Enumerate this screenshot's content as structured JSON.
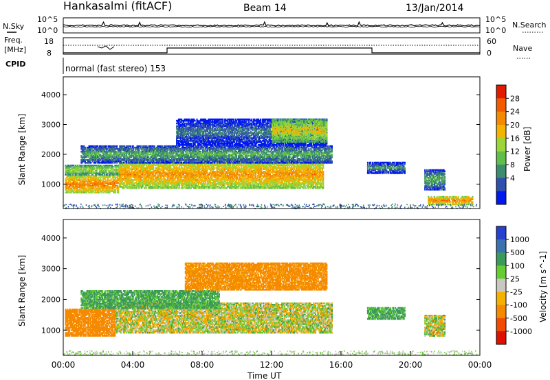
{
  "header": {
    "station": "Hankasalmi (fitACF)",
    "beam": "Beam 14",
    "date": "13/Jan/2014"
  },
  "noise_panel": {
    "left_label": "N.Sky",
    "left_ticks": [
      "10^5",
      "10^0"
    ],
    "right_label": "N.Search",
    "right_ticks": [
      "10^5",
      "10^0"
    ]
  },
  "freq_panel": {
    "label_line1": "Freq.",
    "label_line2": "[MHz]",
    "left_ticks": [
      "18",
      "8"
    ],
    "right_label": "Nave",
    "right_ticks": [
      "60",
      "0"
    ]
  },
  "cpid": {
    "label": "CPID",
    "value": "normal (fast stereo) 153"
  },
  "time_axis": {
    "label": "Time UT",
    "ticks": [
      "00:00",
      "04:00",
      "08:00",
      "12:00",
      "16:00",
      "20:00",
      "00:00"
    ],
    "hours": [
      0,
      4,
      8,
      12,
      16,
      20,
      24
    ]
  },
  "chart_data": [
    {
      "type": "heatmap",
      "title": "Power",
      "ylabel": "Slant Range [km]",
      "xlabel": "",
      "x_range_hours": [
        0,
        24
      ],
      "ylim": [
        180,
        4600
      ],
      "yticks": [
        1000,
        2000,
        3000,
        4000
      ],
      "colorbar_label": "Power [dB]",
      "colorbar_ticks": [
        4,
        8,
        12,
        16,
        20,
        24,
        28
      ],
      "colorbar_colors": [
        "#0018f0",
        "#3050b0",
        "#3c8c6e",
        "#5fbf4a",
        "#9ad63a",
        "#f2b400",
        "#f58a00",
        "#f25a00",
        "#e21a00"
      ],
      "echo_regions": [
        {
          "t0": 0.1,
          "t1": 3.2,
          "r0": 700,
          "r1": 1300,
          "level": 28
        },
        {
          "t0": 0.1,
          "t1": 3.5,
          "r0": 1300,
          "r1": 1650,
          "level": 20
        },
        {
          "t0": 3.2,
          "t1": 15.0,
          "r0": 850,
          "r1": 1800,
          "level": 26
        },
        {
          "t0": 1.0,
          "t1": 15.5,
          "r0": 1700,
          "r1": 2300,
          "level": 14
        },
        {
          "t0": 6.5,
          "t1": 15.2,
          "r0": 2300,
          "r1": 3200,
          "level": 10
        },
        {
          "t0": 12.0,
          "t1": 15.2,
          "r0": 2400,
          "r1": 3200,
          "level": 22
        },
        {
          "t0": 17.5,
          "t1": 19.7,
          "r0": 1350,
          "r1": 1750,
          "level": 12
        },
        {
          "t0": 20.8,
          "t1": 22.0,
          "r0": 800,
          "r1": 1500,
          "level": 14
        },
        {
          "t0": 21.0,
          "t1": 23.6,
          "r0": 300,
          "r1": 600,
          "level": 28
        }
      ]
    },
    {
      "type": "heatmap",
      "title": "Velocity",
      "ylabel": "Slant Range [km]",
      "xlabel": "Time UT",
      "x_range_hours": [
        0,
        24
      ],
      "ylim": [
        180,
        4600
      ],
      "yticks": [
        1000,
        2000,
        3000,
        4000
      ],
      "colorbar_label": "Velocity [m s^-1]",
      "colorbar_ticks": [
        1000,
        500,
        100,
        25,
        -25,
        -100,
        -500,
        -1000
      ],
      "colorbar_colors": [
        "#2840d0",
        "#3a72b0",
        "#3a9a5a",
        "#66cc33",
        "#c8c8c0",
        "#f5b000",
        "#f58a00",
        "#f24a00",
        "#e01000"
      ],
      "echo_regions": [
        {
          "t0": 0.1,
          "t1": 3.0,
          "r0": 800,
          "r1": 1700,
          "level": -300
        },
        {
          "t0": 3.0,
          "t1": 15.5,
          "r0": 900,
          "r1": 1900,
          "level": 0
        },
        {
          "t0": 1.0,
          "t1": 9.0,
          "r0": 1700,
          "r1": 2300,
          "level": 150
        },
        {
          "t0": 7.0,
          "t1": 15.2,
          "r0": 2300,
          "r1": 3200,
          "level": -200
        },
        {
          "t0": 17.5,
          "t1": 19.7,
          "r0": 1350,
          "r1": 1750,
          "level": 150
        },
        {
          "t0": 20.8,
          "t1": 22.0,
          "r0": 800,
          "r1": 1500,
          "level": 0
        }
      ]
    }
  ]
}
